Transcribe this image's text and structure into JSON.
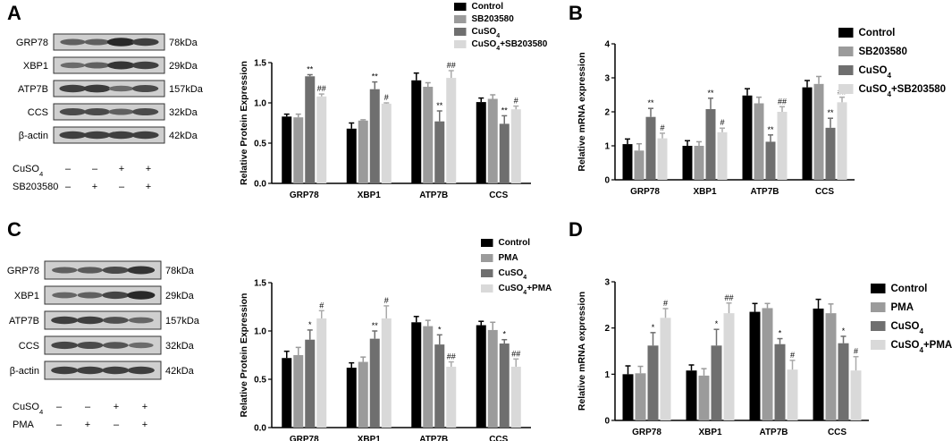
{
  "panels": [
    {
      "letter": "A",
      "blot": {
        "proteins": [
          "GRP78",
          "XBP1",
          "ATP7B",
          "CCS",
          "β-actin"
        ],
        "sizes": [
          "78kDa",
          "29kDa",
          "157kDa",
          "32kDa",
          "42kDa"
        ],
        "treatments": [
          {
            "name": "CuSO",
            "sub": "4",
            "marks": [
              "–",
              "–",
              "+",
              "+"
            ]
          },
          {
            "name": "SB203580",
            "sub": "",
            "marks": [
              "–",
              "+",
              "–",
              "+"
            ]
          }
        ]
      }
    },
    {
      "letter": "B"
    },
    {
      "letter": "C",
      "blot": {
        "proteins": [
          "GRP78",
          "XBP1",
          "ATP7B",
          "CCS",
          "β-actin"
        ],
        "sizes": [
          "78kDa",
          "29kDa",
          "157kDa",
          "32kDa",
          "42kDa"
        ],
        "treatments": [
          {
            "name": "CuSO",
            "sub": "4",
            "marks": [
              "–",
              "–",
              "+",
              "+"
            ]
          },
          {
            "name": "PMA",
            "sub": "",
            "marks": [
              "–",
              "+",
              "–",
              "+"
            ]
          }
        ]
      }
    },
    {
      "letter": "D"
    }
  ],
  "colors": [
    "#000000",
    "#9b9b9b",
    "#6f6f6f",
    "#d9d9d9"
  ],
  "chart_data": [
    {
      "panel": "A",
      "type": "bar",
      "title": "",
      "xlabel": "",
      "ylabel": "Relative Protein Expression",
      "ylim": [
        0,
        1.5
      ],
      "yticks": [
        "0.0",
        "0.5",
        "1.0",
        "1.5"
      ],
      "categories": [
        "GRP78",
        "XBP1",
        "ATP7B",
        "CCS"
      ],
      "legend_position": "top-right",
      "series": [
        {
          "name": "Control",
          "sub": "",
          "suffix": "",
          "values": [
            0.83,
            0.68,
            1.28,
            1.01
          ],
          "errors": [
            0.03,
            0.07,
            0.09,
            0.05
          ],
          "marks": [
            "",
            "",
            "",
            ""
          ]
        },
        {
          "name": "SB203580",
          "sub": "",
          "suffix": "",
          "values": [
            0.82,
            0.78,
            1.2,
            1.05
          ],
          "errors": [
            0.04,
            0.01,
            0.05,
            0.05
          ],
          "marks": [
            "",
            "",
            "",
            ""
          ]
        },
        {
          "name": "CuSO",
          "sub": "4",
          "suffix": "",
          "values": [
            1.33,
            1.17,
            0.77,
            0.74
          ],
          "errors": [
            0.02,
            0.09,
            0.13,
            0.1
          ],
          "marks": [
            "**",
            "**",
            "**",
            "**"
          ]
        },
        {
          "name": "CuSO",
          "sub": "4",
          "suffix": "+SB203580",
          "values": [
            1.08,
            0.99,
            1.31,
            0.92
          ],
          "errors": [
            0.03,
            0.01,
            0.09,
            0.04
          ],
          "marks": [
            "##",
            "#",
            "##",
            "#"
          ]
        }
      ]
    },
    {
      "panel": "B",
      "type": "bar",
      "title": "",
      "xlabel": "",
      "ylabel": "Relative mRNA expression",
      "ylim": [
        0,
        4
      ],
      "yticks": [
        "0",
        "1",
        "2",
        "3",
        "4"
      ],
      "categories": [
        "GRP78",
        "XBP1",
        "ATP7B",
        "CCS"
      ],
      "legend_position": "right",
      "series": [
        {
          "name": "Control",
          "sub": "",
          "suffix": "",
          "values": [
            1.05,
            1.0,
            2.48,
            2.72
          ],
          "errors": [
            0.15,
            0.15,
            0.2,
            0.2
          ],
          "marks": [
            "",
            "",
            "",
            ""
          ]
        },
        {
          "name": "SB203580",
          "sub": "",
          "suffix": "",
          "values": [
            0.86,
            1.0,
            2.25,
            2.82
          ],
          "errors": [
            0.2,
            0.12,
            0.18,
            0.22
          ],
          "marks": [
            "",
            "",
            "",
            ""
          ]
        },
        {
          "name": "CuSO",
          "sub": "4",
          "suffix": "",
          "values": [
            1.85,
            2.08,
            1.12,
            1.53
          ],
          "errors": [
            0.25,
            0.32,
            0.2,
            0.28
          ],
          "marks": [
            "**",
            "**",
            "**",
            "**"
          ]
        },
        {
          "name": "CuSO",
          "sub": "4",
          "suffix": "+SB203580",
          "values": [
            1.22,
            1.4,
            2.0,
            2.28
          ],
          "errors": [
            0.15,
            0.12,
            0.15,
            0.15
          ],
          "marks": [
            "#",
            "#",
            "##",
            "##"
          ]
        }
      ]
    },
    {
      "panel": "C",
      "type": "bar",
      "title": "",
      "xlabel": "",
      "ylabel": "Relative Protein Expression",
      "ylim": [
        0,
        1.5
      ],
      "yticks": [
        "0.0",
        "0.5",
        "1.0",
        "1.5"
      ],
      "categories": [
        "GRP78",
        "XBP1",
        "ATP7B",
        "CCS"
      ],
      "legend_position": "top-right",
      "series": [
        {
          "name": "Control",
          "sub": "",
          "suffix": "",
          "values": [
            0.72,
            0.62,
            1.09,
            1.06
          ],
          "errors": [
            0.07,
            0.05,
            0.06,
            0.04
          ],
          "marks": [
            "",
            "",
            "",
            ""
          ]
        },
        {
          "name": "PMA",
          "sub": "",
          "suffix": "",
          "values": [
            0.75,
            0.68,
            1.05,
            1.01
          ],
          "errors": [
            0.08,
            0.05,
            0.06,
            0.08
          ],
          "marks": [
            "",
            "",
            "",
            ""
          ]
        },
        {
          "name": "CuSO",
          "sub": "4",
          "suffix": "",
          "values": [
            0.91,
            0.92,
            0.86,
            0.87
          ],
          "errors": [
            0.1,
            0.08,
            0.1,
            0.04
          ],
          "marks": [
            "*",
            "**",
            "*",
            "*"
          ]
        },
        {
          "name": "CuSO",
          "sub": "4",
          "suffix": "+PMA",
          "values": [
            1.13,
            1.13,
            0.63,
            0.63
          ],
          "errors": [
            0.08,
            0.13,
            0.05,
            0.08
          ],
          "marks": [
            "#",
            "#",
            "##",
            "##"
          ]
        }
      ]
    },
    {
      "panel": "D",
      "type": "bar",
      "title": "",
      "xlabel": "",
      "ylabel": "Relative mRNA expression",
      "ylim": [
        0,
        3
      ],
      "yticks": [
        "0",
        "1",
        "2",
        "3"
      ],
      "categories": [
        "GRP78",
        "XBP1",
        "ATP7B",
        "CCS"
      ],
      "legend_position": "right",
      "series": [
        {
          "name": "Control",
          "sub": "",
          "suffix": "",
          "values": [
            1.0,
            1.08,
            2.35,
            2.42
          ],
          "errors": [
            0.18,
            0.12,
            0.18,
            0.2
          ],
          "marks": [
            "",
            "",
            "",
            ""
          ]
        },
        {
          "name": "PMA",
          "sub": "",
          "suffix": "",
          "values": [
            1.02,
            0.97,
            2.43,
            2.32
          ],
          "errors": [
            0.15,
            0.15,
            0.1,
            0.2
          ],
          "marks": [
            "",
            "",
            "",
            ""
          ]
        },
        {
          "name": "CuSO",
          "sub": "4",
          "suffix": "",
          "values": [
            1.62,
            1.62,
            1.65,
            1.67
          ],
          "errors": [
            0.28,
            0.35,
            0.12,
            0.15
          ],
          "marks": [
            "*",
            "*",
            "*",
            "*"
          ]
        },
        {
          "name": "CuSO",
          "sub": "4",
          "suffix": "+PMA",
          "values": [
            2.22,
            2.32,
            1.1,
            1.08
          ],
          "errors": [
            0.2,
            0.22,
            0.2,
            0.3
          ],
          "marks": [
            "#",
            "##",
            "#",
            "#"
          ]
        }
      ]
    }
  ]
}
